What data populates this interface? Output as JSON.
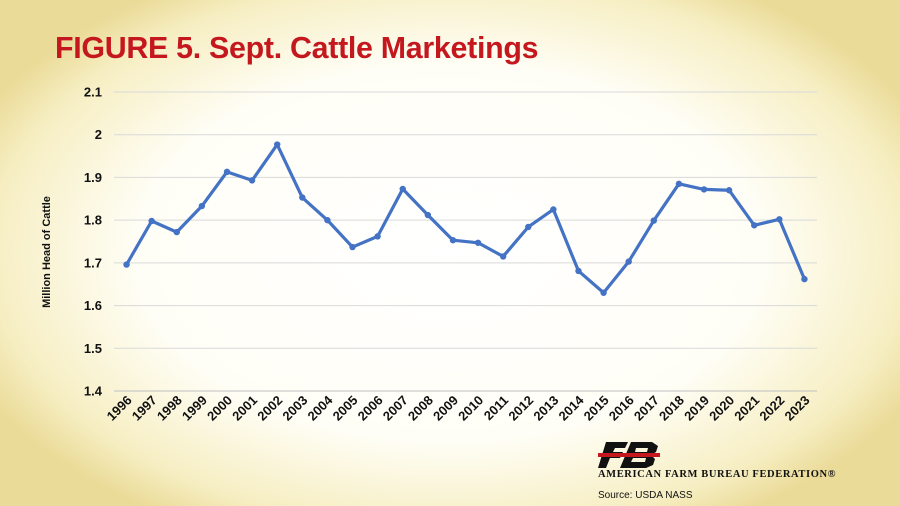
{
  "title": "FIGURE 5. Sept. Cattle Marketings",
  "colors": {
    "title": "#c4181e",
    "line": "#4472c4",
    "grid": "#d9d9d9"
  },
  "chart_data": {
    "type": "line",
    "title": "FIGURE 5. Sept. Cattle Marketings",
    "xlabel": "",
    "ylabel": "Million Head of Cattle",
    "ylim": [
      1.4,
      2.1
    ],
    "yticks": [
      "1.4",
      "1.5",
      "1.6",
      "1.7",
      "1.8",
      "1.9",
      "2",
      "2.1"
    ],
    "grid": true,
    "x": [
      "1996",
      "1997",
      "1998",
      "1999",
      "2000",
      "2001",
      "2002",
      "2003",
      "2004",
      "2005",
      "2006",
      "2007",
      "2008",
      "2009",
      "2010",
      "2011",
      "2012",
      "2013",
      "2014",
      "2015",
      "2016",
      "2017",
      "2018",
      "2019",
      "2020",
      "2021",
      "2022",
      "2023"
    ],
    "series": [
      {
        "values": [
          1.696,
          1.798,
          1.772,
          1.833,
          1.913,
          1.893,
          1.977,
          1.853,
          1.8,
          1.737,
          1.762,
          1.873,
          1.812,
          1.753,
          1.747,
          1.715,
          1.784,
          1.825,
          1.681,
          1.63,
          1.703,
          1.799,
          1.885,
          1.872,
          1.87,
          1.788,
          1.802,
          1.662
        ]
      }
    ]
  },
  "logo": {
    "org_name": "AMERICAN FARM BUREAU FEDERATION®",
    "icon": "afbf-fb-logo"
  },
  "source": "Source: USDA NASS"
}
